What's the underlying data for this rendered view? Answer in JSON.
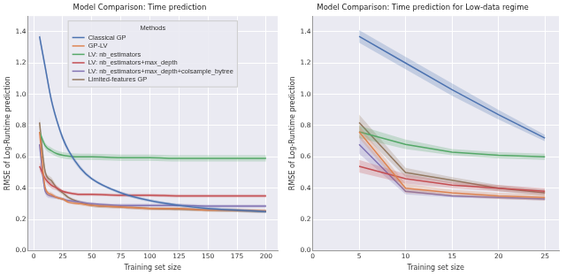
{
  "chart_data": [
    {
      "type": "line",
      "title": "Model Comparison: Time prediction",
      "x_label": "Training set size",
      "y_label": "RMSE of Log-Runtime prediction",
      "xlim": [
        -5,
        210
      ],
      "xticks": [
        0,
        25,
        50,
        75,
        100,
        125,
        150,
        175,
        200
      ],
      "ylim": [
        0,
        1.5
      ],
      "yticks": [
        {
          "value": 0,
          "label": "0.0"
        },
        0.2,
        0.4,
        0.6,
        0.8,
        {
          "value": 1,
          "label": "1.0"
        },
        1.2,
        1.4
      ],
      "grid": true,
      "legend": "upper center",
      "legend_title": "Methods",
      "x": [
        5,
        10,
        15,
        20,
        25,
        30,
        40,
        50,
        75,
        100,
        125,
        150,
        175,
        200
      ],
      "series": [
        {
          "name": "Classical GP",
          "color": "#4c72b0",
          "values": [
            1.37,
            1.17,
            0.97,
            0.83,
            0.72,
            0.64,
            0.53,
            0.46,
            0.37,
            0.32,
            0.29,
            0.27,
            0.26,
            0.25
          ],
          "lower": [
            1.34,
            1.14,
            0.945,
            0.81,
            0.7,
            0.625,
            0.515,
            0.45,
            0.36,
            0.31,
            0.28,
            0.26,
            0.25,
            0.24
          ],
          "upper": [
            1.4,
            1.2,
            0.995,
            0.85,
            0.74,
            0.655,
            0.545,
            0.47,
            0.38,
            0.33,
            0.3,
            0.28,
            0.27,
            0.26
          ]
        },
        {
          "name": "GP-LV",
          "color": "#dd8452",
          "values": [
            0.76,
            0.4,
            0.36,
            0.34,
            0.33,
            0.31,
            0.3,
            0.29,
            0.28,
            0.27,
            0.27,
            0.26,
            0.26,
            0.255
          ],
          "lower": [
            0.72,
            0.38,
            0.345,
            0.33,
            0.32,
            0.3,
            0.29,
            0.28,
            0.27,
            0.26,
            0.26,
            0.25,
            0.25,
            0.245
          ],
          "upper": [
            0.8,
            0.42,
            0.375,
            0.35,
            0.34,
            0.32,
            0.31,
            0.3,
            0.29,
            0.28,
            0.28,
            0.27,
            0.27,
            0.265
          ]
        },
        {
          "name": "LV: nb_estimators",
          "color": "#55a868",
          "values": [
            0.76,
            0.67,
            0.64,
            0.62,
            0.61,
            0.605,
            0.6,
            0.6,
            0.595,
            0.595,
            0.59,
            0.59,
            0.59,
            0.59
          ],
          "lower": [
            0.74,
            0.65,
            0.62,
            0.6,
            0.59,
            0.585,
            0.58,
            0.58,
            0.575,
            0.575,
            0.57,
            0.57,
            0.57,
            0.57
          ],
          "upper": [
            0.78,
            0.69,
            0.66,
            0.64,
            0.63,
            0.625,
            0.62,
            0.62,
            0.615,
            0.615,
            0.61,
            0.61,
            0.61,
            0.61
          ]
        },
        {
          "name": "LV: nb_estimators+max_depth",
          "color": "#c44e52",
          "values": [
            0.54,
            0.46,
            0.42,
            0.4,
            0.38,
            0.37,
            0.36,
            0.36,
            0.355,
            0.355,
            0.35,
            0.35,
            0.35,
            0.35
          ],
          "lower": [
            0.51,
            0.44,
            0.4,
            0.385,
            0.37,
            0.36,
            0.35,
            0.35,
            0.345,
            0.345,
            0.34,
            0.34,
            0.34,
            0.34
          ],
          "upper": [
            0.57,
            0.48,
            0.44,
            0.415,
            0.39,
            0.38,
            0.37,
            0.37,
            0.365,
            0.365,
            0.36,
            0.36,
            0.36,
            0.36
          ]
        },
        {
          "name": "LV: nb_estimators+max_depth+colsample_bytree",
          "color": "#8172b3",
          "values": [
            0.68,
            0.38,
            0.35,
            0.34,
            0.33,
            0.32,
            0.31,
            0.3,
            0.29,
            0.29,
            0.29,
            0.285,
            0.285,
            0.285
          ],
          "lower": [
            0.64,
            0.36,
            0.335,
            0.33,
            0.32,
            0.31,
            0.3,
            0.29,
            0.28,
            0.28,
            0.28,
            0.275,
            0.275,
            0.275
          ],
          "upper": [
            0.72,
            0.4,
            0.365,
            0.35,
            0.34,
            0.33,
            0.32,
            0.31,
            0.3,
            0.3,
            0.3,
            0.295,
            0.295,
            0.295
          ]
        },
        {
          "name": "Limited-features GP",
          "color": "#937860",
          "values": [
            0.82,
            0.5,
            0.45,
            0.4,
            0.37,
            0.34,
            0.31,
            0.29,
            0.28,
            0.27,
            0.265,
            0.26,
            0.255,
            0.25
          ],
          "lower": [
            0.78,
            0.48,
            0.43,
            0.385,
            0.355,
            0.33,
            0.3,
            0.28,
            0.27,
            0.26,
            0.255,
            0.25,
            0.245,
            0.24
          ],
          "upper": [
            0.86,
            0.52,
            0.47,
            0.415,
            0.385,
            0.35,
            0.32,
            0.3,
            0.29,
            0.28,
            0.275,
            0.27,
            0.265,
            0.26
          ]
        }
      ]
    },
    {
      "type": "line",
      "title": "Model Comparison: Time prediction for Low-data regime",
      "x_label": "Training set size",
      "y_label": "RMSE of Log-Runtime prediction",
      "xlim": [
        0,
        26.5
      ],
      "xticks": [
        0,
        5,
        10,
        15,
        20,
        25
      ],
      "ylim": [
        0,
        1.5
      ],
      "yticks": [
        {
          "value": 0,
          "label": "0.0"
        },
        0.2,
        0.4,
        0.6,
        0.8,
        {
          "value": 1,
          "label": "1.0"
        },
        1.2,
        1.4
      ],
      "grid": true,
      "x": [
        5,
        10,
        15,
        20,
        25
      ],
      "series": [
        {
          "color": "#4c72b0",
          "values": [
            1.37,
            1.2,
            1.03,
            0.87,
            0.72
          ],
          "lower": [
            1.33,
            1.16,
            0.99,
            0.84,
            0.7
          ],
          "upper": [
            1.41,
            1.24,
            1.07,
            0.9,
            0.74
          ]
        },
        {
          "color": "#dd8452",
          "values": [
            0.76,
            0.4,
            0.37,
            0.35,
            0.34
          ],
          "lower": [
            0.72,
            0.37,
            0.35,
            0.33,
            0.32
          ],
          "upper": [
            0.8,
            0.43,
            0.39,
            0.37,
            0.36
          ]
        },
        {
          "color": "#55a868",
          "values": [
            0.76,
            0.68,
            0.63,
            0.61,
            0.6
          ],
          "lower": [
            0.72,
            0.65,
            0.61,
            0.59,
            0.58
          ],
          "upper": [
            0.8,
            0.71,
            0.65,
            0.63,
            0.62
          ]
        },
        {
          "color": "#c44e52",
          "values": [
            0.54,
            0.46,
            0.42,
            0.4,
            0.38
          ],
          "lower": [
            0.5,
            0.43,
            0.4,
            0.38,
            0.36
          ],
          "upper": [
            0.58,
            0.49,
            0.44,
            0.42,
            0.4
          ]
        },
        {
          "color": "#8172b3",
          "values": [
            0.68,
            0.38,
            0.35,
            0.34,
            0.33
          ],
          "lower": [
            0.62,
            0.36,
            0.34,
            0.33,
            0.32
          ],
          "upper": [
            0.74,
            0.4,
            0.36,
            0.35,
            0.34
          ]
        },
        {
          "color": "#937860",
          "values": [
            0.82,
            0.5,
            0.45,
            0.4,
            0.37
          ],
          "lower": [
            0.77,
            0.47,
            0.43,
            0.38,
            0.35
          ],
          "upper": [
            0.87,
            0.53,
            0.47,
            0.42,
            0.39
          ]
        }
      ]
    }
  ]
}
